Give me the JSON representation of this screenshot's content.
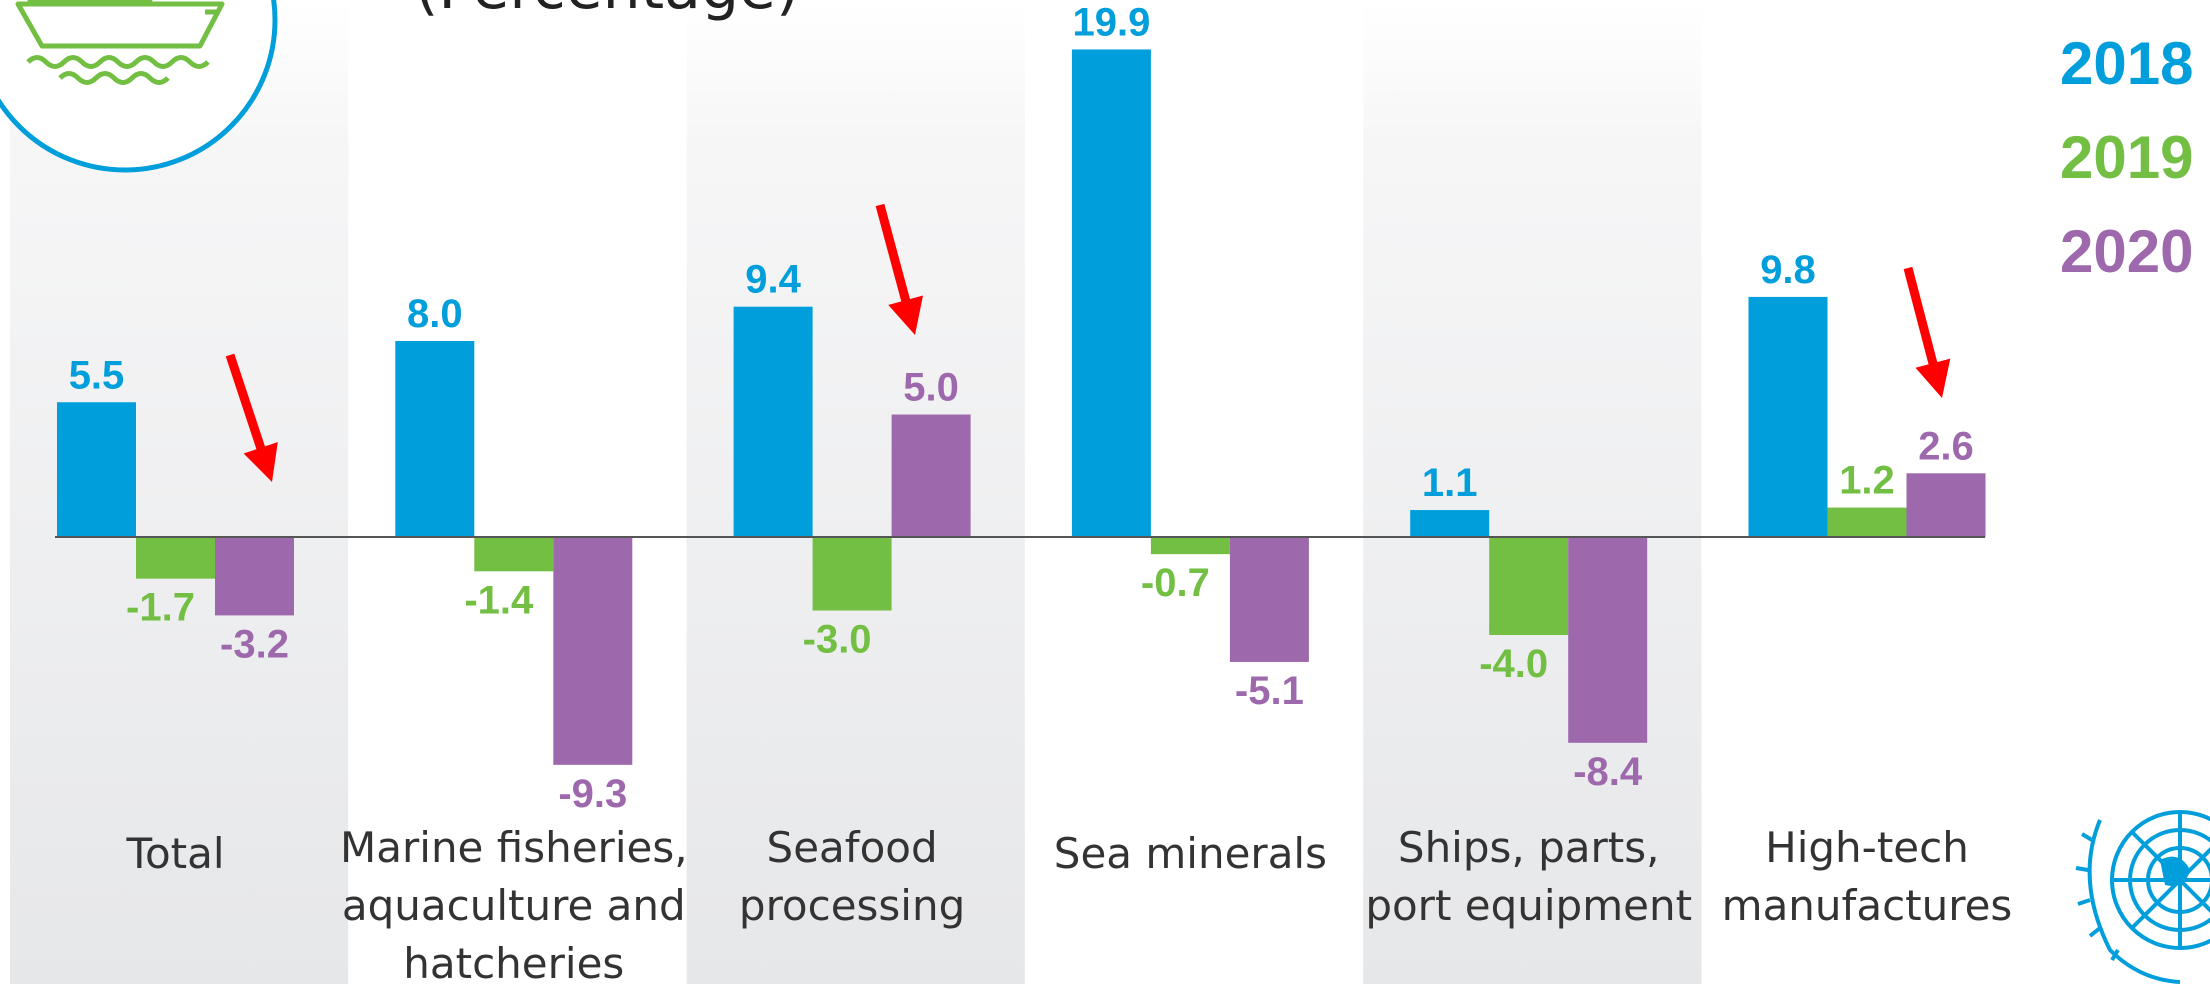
{
  "chart_data": {
    "type": "bar",
    "subtitle": "(Percentage)",
    "categories": [
      [
        "Total"
      ],
      [
        "Marine fisheries,",
        "aquaculture and",
        "hatcheries"
      ],
      [
        "Seafood",
        "processing"
      ],
      [
        "Sea minerals"
      ],
      [
        "Ships, parts,",
        "port equipment"
      ],
      [
        "High-tech",
        "manufactures"
      ]
    ],
    "series": [
      {
        "name": "2018",
        "color": "#009EDB",
        "values": [
          5.5,
          8.0,
          9.4,
          19.9,
          1.1,
          9.8
        ]
      },
      {
        "name": "2019",
        "color": "#72BF44",
        "values": [
          -1.7,
          -1.4,
          -3.0,
          -0.7,
          -4.0,
          1.2
        ]
      },
      {
        "name": "2020",
        "color": "#9E68AD",
        "values": [
          -3.2,
          -9.3,
          5.0,
          -5.1,
          -8.4,
          2.6
        ]
      }
    ],
    "legend_position": "top-right",
    "arrows_on_categories": [
      0,
      2,
      5
    ],
    "arrow_color": "#FF0000",
    "grid": false
  },
  "icons": {
    "ship": "cargo-ship-icon",
    "un_emblem": "un-emblem-icon",
    "ship_color": "#72BF44",
    "circle_color": "#009EDB"
  }
}
